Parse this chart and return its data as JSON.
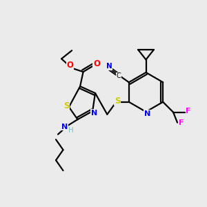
{
  "bg_color": "#ebebeb",
  "atom_colors": {
    "N": "#0000ff",
    "O": "#ff0000",
    "S": "#cccc00",
    "F": "#ff00ff",
    "H": "#7fbfbf"
  },
  "figsize": [
    3.0,
    3.0
  ],
  "dpi": 100
}
